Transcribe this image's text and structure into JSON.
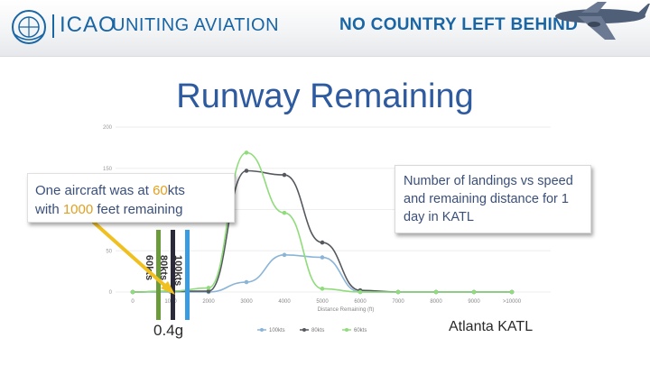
{
  "header": {
    "org": "ICAO",
    "tagline": "UNITING AVIATION",
    "motto": "NO COUNTRY LEFT BEHIND"
  },
  "title": "Runway Remaining",
  "callouts": {
    "left": {
      "line1_pre": "One aircraft was at ",
      "line1_hl": "60",
      "line1_post": "kts",
      "line2_pre": "with ",
      "line2_hl": "1000",
      "line2_post": " feet remaining"
    },
    "right": "Number of landings vs speed and remaining distance for 1 day in KATL"
  },
  "bars": [
    {
      "label": "60kts",
      "color": "#6b9b3a"
    },
    {
      "label": "80kts",
      "color": "#2a2a3a"
    },
    {
      "label": "100kts",
      "color": "#3b9be0"
    }
  ],
  "g_value": "0.4g",
  "location": "Atlanta KATL",
  "chart_data": {
    "type": "line",
    "xlabel": "Distance Remaining (ft)",
    "ylabel": "",
    "categories": [
      "0",
      "1000",
      "2000",
      "3000",
      "4000",
      "5000",
      "6000",
      "7000",
      "8000",
      "9000",
      ">10000"
    ],
    "y_ticks": [
      "0",
      "50",
      "100",
      "150",
      "200"
    ],
    "ylim": [
      0,
      200
    ],
    "grid": true,
    "legend": "bottom",
    "series": [
      {
        "name": "100kts",
        "color": "#8ab4d8",
        "values": [
          0,
          0,
          0,
          12,
          45,
          42,
          0,
          0,
          0,
          0,
          0
        ]
      },
      {
        "name": "80kts",
        "color": "#55595e",
        "values": [
          0,
          1,
          1,
          147,
          142,
          60,
          2,
          0,
          0,
          0,
          0
        ]
      },
      {
        "name": "60kts",
        "color": "#8fdc7a",
        "values": [
          0,
          1,
          5,
          169,
          96,
          4,
          0,
          0,
          0,
          0,
          0
        ]
      }
    ]
  }
}
